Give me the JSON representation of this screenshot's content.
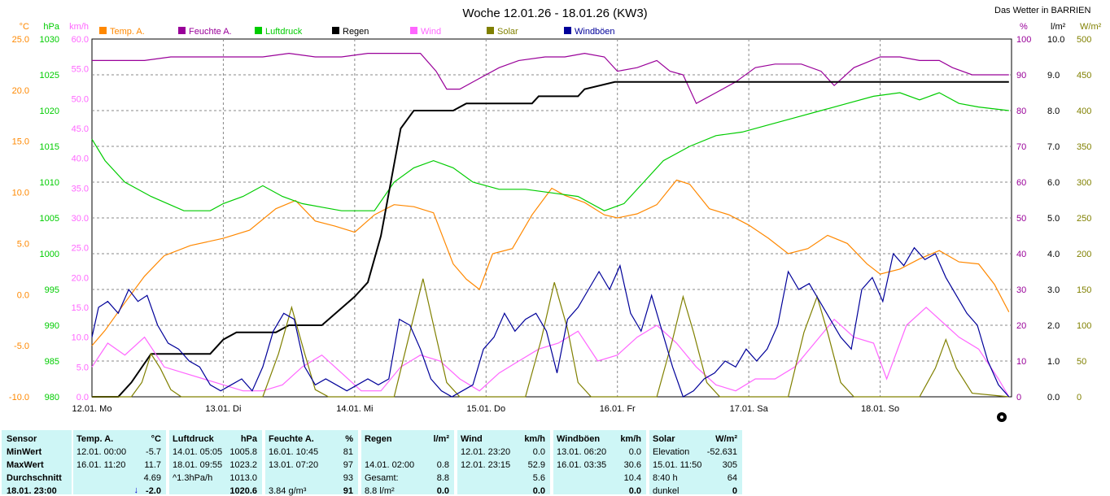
{
  "header": {
    "title": "Woche 12.01.26 - 18.01.26 (KW3)",
    "site": "Das Wetter in BARRIEN"
  },
  "axes": {
    "temp": {
      "unit": "°C",
      "color": "#ff8800",
      "min": -10,
      "max": 25,
      "ticks": [
        "25.0",
        "20.0",
        "15.0",
        "10.0",
        "5.0",
        "0.0",
        "-5.0",
        "-10.0"
      ]
    },
    "press": {
      "unit": "hPa",
      "color": "#00cc00",
      "min": 980,
      "max": 1030,
      "ticks": [
        "1030",
        "1025",
        "1020",
        "1015",
        "1010",
        "1005",
        "1000",
        "995",
        "990",
        "985",
        "980"
      ]
    },
    "wind": {
      "unit": "km/h",
      "color": "#ff66ff",
      "min": 0,
      "max": 60,
      "ticks": [
        "60.0",
        "55.0",
        "50.0",
        "45.0",
        "40.0",
        "35.0",
        "30.0",
        "25.0",
        "20.0",
        "15.0",
        "10.0",
        "5.0",
        "0.0"
      ]
    },
    "hum": {
      "unit": "%",
      "color": "#990099",
      "min": 0,
      "max": 100,
      "ticks": [
        "100",
        "90",
        "80",
        "70",
        "60",
        "50",
        "40",
        "30",
        "20",
        "10",
        "0"
      ]
    },
    "rain": {
      "unit": "l/m²",
      "color": "#000000",
      "min": 0,
      "max": 10,
      "ticks": [
        "10.0",
        "9.0",
        "8.0",
        "7.0",
        "6.0",
        "5.0",
        "4.0",
        "3.0",
        "2.0",
        "1.0",
        "0.0"
      ]
    },
    "solar": {
      "unit": "W/m²",
      "color": "#808000",
      "min": 0,
      "max": 500,
      "ticks": [
        "500",
        "450",
        "400",
        "350",
        "300",
        "250",
        "200",
        "150",
        "100",
        "50",
        "0"
      ]
    }
  },
  "chart_data": {
    "type": "line",
    "title": "Woche 12.01.26 - 18.01.26 (KW3)",
    "x_labels": [
      "12.01. Mo",
      "13.01. Di",
      "14.01. Mi",
      "15.01. Do",
      "16.01. Fr",
      "17.01. Sa",
      "18.01. So"
    ],
    "x_days": [
      0,
      1,
      2,
      3,
      4,
      5,
      6
    ],
    "x_range": [
      0,
      7
    ],
    "grid": true,
    "legend_position": "top",
    "series": [
      {
        "name": "Temp. A.",
        "axis": "temp",
        "color": "#ff8800",
        "x": [
          0,
          0.1,
          0.25,
          0.4,
          0.55,
          0.75,
          1.0,
          1.2,
          1.4,
          1.55,
          1.7,
          1.85,
          2.0,
          2.15,
          2.3,
          2.45,
          2.6,
          2.75,
          2.85,
          2.95,
          3.05,
          3.2,
          3.35,
          3.5,
          3.6,
          3.75,
          3.9,
          4.0,
          4.15,
          4.3,
          4.45,
          4.55,
          4.7,
          4.85,
          5.0,
          5.15,
          5.3,
          5.45,
          5.6,
          5.75,
          5.9,
          6.0,
          6.15,
          6.3,
          6.45,
          6.6,
          6.75,
          6.87,
          6.98
        ],
        "y": [
          -5.0,
          -3.5,
          -0.8,
          1.8,
          3.8,
          4.8,
          5.5,
          6.3,
          8.4,
          9.2,
          7.2,
          6.7,
          6.1,
          7.8,
          8.8,
          8.6,
          8.0,
          3.0,
          1.5,
          0.5,
          4.0,
          4.5,
          7.8,
          10.4,
          9.7,
          9.0,
          7.8,
          7.5,
          7.9,
          8.8,
          11.2,
          10.8,
          8.4,
          7.8,
          6.8,
          5.5,
          4.0,
          4.5,
          5.8,
          5.0,
          3.0,
          2.0,
          2.5,
          3.5,
          4.3,
          3.2,
          3.0,
          1.0,
          -1.7
        ]
      },
      {
        "name": "Feuchte A.",
        "axis": "hum",
        "color": "#990099",
        "x": [
          0,
          0.2,
          0.4,
          0.6,
          0.85,
          1.1,
          1.3,
          1.5,
          1.7,
          1.9,
          2.1,
          2.3,
          2.5,
          2.62,
          2.7,
          2.8,
          2.95,
          3.1,
          3.25,
          3.45,
          3.6,
          3.75,
          3.9,
          4.0,
          4.15,
          4.3,
          4.4,
          4.5,
          4.6,
          4.75,
          4.9,
          5.05,
          5.2,
          5.4,
          5.55,
          5.65,
          5.8,
          6.0,
          6.15,
          6.3,
          6.45,
          6.55,
          6.7,
          6.98
        ],
        "y": [
          94,
          94,
          94,
          95,
          95,
          95,
          95,
          96,
          95,
          95,
          96,
          96,
          96,
          91,
          86,
          86,
          89,
          92,
          94,
          95,
          95,
          96,
          95,
          91,
          92,
          94,
          91,
          90,
          82,
          85,
          88,
          92,
          93,
          93,
          91,
          87,
          92,
          95,
          95,
          94,
          94,
          92,
          90,
          90
        ]
      },
      {
        "name": "Luftdruck",
        "axis": "press",
        "color": "#00cc00",
        "x": [
          0,
          0.1,
          0.25,
          0.45,
          0.7,
          0.9,
          1.0,
          1.15,
          1.3,
          1.45,
          1.6,
          1.75,
          1.9,
          2.05,
          2.15,
          2.3,
          2.45,
          2.6,
          2.75,
          2.9,
          3.1,
          3.3,
          3.5,
          3.7,
          3.9,
          4.05,
          4.2,
          4.35,
          4.55,
          4.75,
          4.95,
          5.15,
          5.35,
          5.55,
          5.75,
          5.95,
          6.15,
          6.3,
          6.45,
          6.6,
          6.75,
          6.98
        ],
        "y": [
          1016,
          1013,
          1010,
          1008,
          1006,
          1006,
          1007,
          1008,
          1009.5,
          1008,
          1007,
          1006.5,
          1006,
          1006,
          1006,
          1010,
          1012,
          1013,
          1012,
          1010,
          1009,
          1009,
          1008.5,
          1008,
          1006,
          1007,
          1010,
          1013,
          1015,
          1016.5,
          1017,
          1018,
          1019,
          1020,
          1021,
          1022,
          1022.5,
          1021.5,
          1022.5,
          1021,
          1020.5,
          1020
        ]
      },
      {
        "name": "Regen",
        "axis": "rain",
        "color": "#000000",
        "x": [
          0,
          0.2,
          0.3,
          0.45,
          0.6,
          0.9,
          1.0,
          1.1,
          1.4,
          1.5,
          1.75,
          2.0,
          2.1,
          2.2,
          2.3,
          2.35,
          2.45,
          2.55,
          2.65,
          2.75,
          2.85,
          2.9,
          3.0,
          3.2,
          3.35,
          3.4,
          3.7,
          3.75,
          3.98,
          4.2,
          4.5,
          4.8,
          5.2,
          5.6,
          6.0,
          6.4,
          6.98
        ],
        "y": [
          0,
          0,
          0.4,
          1.2,
          1.2,
          1.2,
          1.6,
          1.8,
          1.8,
          2.0,
          2.0,
          2.8,
          3.2,
          4.5,
          6.5,
          7.5,
          8.0,
          8.0,
          8.0,
          8.0,
          8.2,
          8.2,
          8.2,
          8.2,
          8.2,
          8.4,
          8.4,
          8.6,
          8.8,
          8.8,
          8.8,
          8.8,
          8.8,
          8.8,
          8.8,
          8.8,
          8.8
        ]
      },
      {
        "name": "Wind",
        "axis": "wind",
        "color": "#ff66ff",
        "x": [
          0,
          0.12,
          0.25,
          0.4,
          0.55,
          0.7,
          0.85,
          1.0,
          1.15,
          1.3,
          1.45,
          1.6,
          1.75,
          1.9,
          2.05,
          2.2,
          2.35,
          2.5,
          2.65,
          2.8,
          2.95,
          3.1,
          3.25,
          3.4,
          3.55,
          3.7,
          3.85,
          4.0,
          4.15,
          4.3,
          4.45,
          4.6,
          4.75,
          4.9,
          5.05,
          5.2,
          5.35,
          5.5,
          5.65,
          5.8,
          5.95,
          6.05,
          6.2,
          6.35,
          6.5,
          6.6,
          6.75,
          6.9,
          6.98
        ],
        "y": [
          5,
          9,
          7,
          10,
          5,
          4,
          3,
          2,
          1,
          1,
          2,
          5,
          7,
          4,
          1,
          1,
          5,
          7,
          6,
          3,
          1,
          4,
          6,
          8,
          9,
          11,
          6,
          7,
          10,
          12,
          9,
          5,
          2,
          1,
          3,
          3,
          5,
          9,
          13,
          10,
          9,
          3,
          12,
          15,
          12,
          10,
          8,
          3,
          0
        ]
      },
      {
        "name": "Solar",
        "axis": "solar",
        "color": "#808000",
        "x": [
          0,
          0.3,
          0.38,
          0.45,
          0.52,
          0.6,
          0.68,
          1.3,
          1.42,
          1.52,
          1.62,
          1.7,
          1.8,
          2.3,
          2.42,
          2.52,
          2.6,
          2.7,
          2.8,
          3.3,
          3.42,
          3.52,
          3.62,
          3.7,
          3.8,
          4.3,
          4.42,
          4.5,
          4.58,
          4.68,
          4.78,
          5.3,
          5.42,
          5.52,
          5.6,
          5.7,
          5.8,
          6.3,
          6.42,
          6.5,
          6.58,
          6.7,
          6.98
        ],
        "y": [
          0,
          0,
          20,
          60,
          40,
          10,
          0,
          0,
          60,
          125,
          60,
          10,
          0,
          0,
          90,
          165,
          100,
          20,
          0,
          0,
          80,
          160,
          95,
          20,
          0,
          0,
          80,
          140,
          90,
          20,
          0,
          0,
          90,
          140,
          90,
          20,
          0,
          0,
          40,
          80,
          40,
          5,
          0
        ]
      },
      {
        "name": "Windböen",
        "axis": "wind",
        "color": "#000099",
        "x": [
          0,
          0.05,
          0.12,
          0.2,
          0.28,
          0.35,
          0.42,
          0.5,
          0.58,
          0.66,
          0.74,
          0.82,
          0.9,
          0.98,
          1.06,
          1.14,
          1.22,
          1.3,
          1.38,
          1.46,
          1.54,
          1.62,
          1.7,
          1.78,
          1.86,
          1.94,
          2.02,
          2.1,
          2.18,
          2.26,
          2.34,
          2.42,
          2.5,
          2.58,
          2.66,
          2.74,
          2.82,
          2.9,
          2.98,
          3.06,
          3.14,
          3.22,
          3.3,
          3.38,
          3.46,
          3.54,
          3.62,
          3.7,
          3.78,
          3.86,
          3.94,
          4.02,
          4.1,
          4.18,
          4.26,
          4.34,
          4.42,
          4.5,
          4.58,
          4.66,
          4.74,
          4.82,
          4.9,
          4.98,
          5.06,
          5.14,
          5.22,
          5.3,
          5.38,
          5.46,
          5.54,
          5.62,
          5.7,
          5.78,
          5.86,
          5.94,
          6.02,
          6.1,
          6.18,
          6.26,
          6.34,
          6.42,
          6.5,
          6.58,
          6.66,
          6.74,
          6.82,
          6.9,
          6.98
        ],
        "y": [
          10,
          15,
          16,
          14,
          18,
          16,
          17,
          12,
          9,
          8,
          6,
          5,
          2,
          1,
          2,
          3,
          1,
          5,
          11,
          14,
          13,
          5,
          2,
          3,
          2,
          1,
          2,
          3,
          2,
          3,
          13,
          12,
          8,
          3,
          1,
          0,
          1,
          2,
          8,
          10,
          14,
          11,
          13,
          14,
          11,
          4,
          13,
          15,
          18,
          21,
          18,
          22,
          14,
          11,
          17,
          11,
          5,
          0,
          1,
          3,
          4,
          6,
          5,
          8,
          6,
          8,
          12,
          21,
          18,
          19,
          16,
          13,
          10,
          8,
          18,
          20,
          16,
          24,
          22,
          25,
          23,
          24,
          20,
          17,
          14,
          12,
          6,
          2,
          0
        ]
      }
    ]
  },
  "legend": [
    {
      "label": "Temp. A.",
      "color": "#ff8800"
    },
    {
      "label": "Feuchte A.",
      "color": "#990099"
    },
    {
      "label": "Luftdruck",
      "color": "#00cc00"
    },
    {
      "label": "Regen",
      "color": "#000000"
    },
    {
      "label": "Wind",
      "color": "#ff66ff"
    },
    {
      "label": "Solar",
      "color": "#808000"
    },
    {
      "label": "Windböen",
      "color": "#000099"
    }
  ],
  "table": {
    "sensor": {
      "h": "Sensor",
      "rows": [
        "MinWert",
        "MaxWert",
        "Durchschnitt",
        "18.01. 23:00"
      ]
    },
    "temp": {
      "h": "Temp. A.",
      "u": "°C",
      "rows": [
        [
          "12.01. 00:00",
          "-5.7"
        ],
        [
          "16.01. 11:20",
          "11.7"
        ],
        [
          "",
          "4.69"
        ],
        [
          "",
          "-2.0"
        ]
      ],
      "arrow": "↓"
    },
    "press": {
      "h": "Luftdruck",
      "u": "hPa",
      "rows": [
        [
          "14.01. 05:05",
          "1005.8"
        ],
        [
          "18.01. 09:55",
          "1023.2"
        ],
        [
          "^1.3hPa/h",
          "1013.0"
        ],
        [
          "",
          "1020.6"
        ]
      ]
    },
    "hum": {
      "h": "Feuchte A.",
      "u": "%",
      "rows": [
        [
          "16.01. 10:45",
          "81"
        ],
        [
          "13.01. 07:20",
          "97"
        ],
        [
          "",
          "93"
        ],
        [
          "3.84 g/m³",
          "91"
        ]
      ]
    },
    "rain": {
      "h": "Regen",
      "u": "l/m²",
      "rows": [
        [
          "",
          ""
        ],
        [
          "14.01. 02:00",
          "0.8"
        ],
        [
          "Gesamt:",
          "8.8"
        ],
        [
          "8.8 l/m²",
          "0.0"
        ]
      ]
    },
    "wind": {
      "h": "Wind",
      "u": "km/h",
      "rows": [
        [
          "12.01. 23:20",
          "0.0"
        ],
        [
          "12.01. 23:15",
          "52.9"
        ],
        [
          "",
          "5.6"
        ],
        [
          "",
          "0.0"
        ]
      ]
    },
    "gust": {
      "h": "Windböen",
      "u": "km/h",
      "rows": [
        [
          "13.01. 06:20",
          "0.0"
        ],
        [
          "16.01. 03:35",
          "30.6"
        ],
        [
          "",
          "10.4"
        ],
        [
          "",
          "0.0"
        ]
      ]
    },
    "solar": {
      "h": "Solar",
      "u": "W/m²",
      "rows": [
        [
          "Elevation",
          "-52.631"
        ],
        [
          "15.01. 11:50",
          "305"
        ],
        [
          "8:40 h",
          "64"
        ],
        [
          "dunkel",
          "0"
        ]
      ]
    }
  }
}
